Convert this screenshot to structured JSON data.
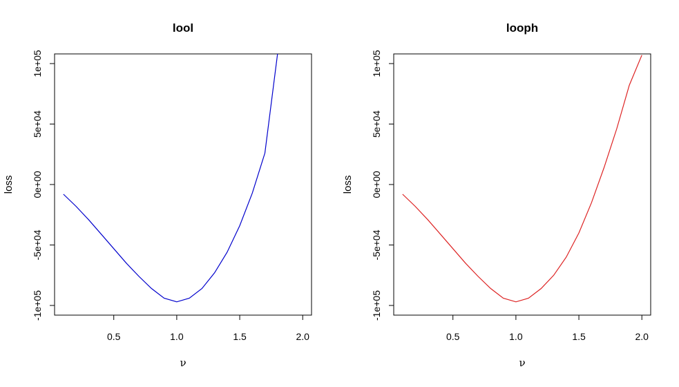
{
  "chart_data": [
    {
      "type": "line",
      "title": "lool",
      "xlabel": "ν",
      "ylabel": "loss",
      "xlim": [
        0.03,
        2.07
      ],
      "ylim": [
        -108000,
        108000
      ],
      "xticks": [
        0.5,
        1.0,
        1.5,
        2.0
      ],
      "xtick_labels": [
        "0.5",
        "1.0",
        "1.5",
        "2.0"
      ],
      "yticks": [
        -100000,
        -50000,
        0,
        50000,
        100000
      ],
      "ytick_labels": [
        "-1e+05",
        "-5e+04",
        "0e+00",
        "5e+04",
        "1e+05"
      ],
      "grid": false,
      "color": "#0000cc",
      "series": [
        {
          "x": [
            0.1,
            0.2,
            0.3,
            0.4,
            0.5,
            0.6,
            0.7,
            0.8,
            0.9,
            1.0,
            1.1,
            1.2,
            1.3,
            1.4,
            1.5,
            1.6,
            1.7,
            1.8
          ],
          "values": [
            -8000,
            -18000,
            -29000,
            -41000,
            -53000,
            -65000,
            -76000,
            -86000,
            -94000,
            -97000,
            -94000,
            -86000,
            -73000,
            -56000,
            -34000,
            -7000,
            26000,
            108000
          ]
        }
      ]
    },
    {
      "type": "line",
      "title": "looph",
      "xlabel": "ν",
      "ylabel": "loss",
      "xlim": [
        0.03,
        2.07
      ],
      "ylim": [
        -108000,
        108000
      ],
      "xticks": [
        0.5,
        1.0,
        1.5,
        2.0
      ],
      "xtick_labels": [
        "0.5",
        "1.0",
        "1.5",
        "2.0"
      ],
      "yticks": [
        -100000,
        -50000,
        0,
        50000,
        100000
      ],
      "ytick_labels": [
        "-1e+05",
        "-5e+04",
        "0e+00",
        "5e+04",
        "1e+05"
      ],
      "grid": false,
      "color": "#dd2222",
      "series": [
        {
          "x": [
            0.1,
            0.2,
            0.3,
            0.4,
            0.5,
            0.6,
            0.7,
            0.8,
            0.9,
            1.0,
            1.1,
            1.2,
            1.3,
            1.4,
            1.5,
            1.6,
            1.7,
            1.8,
            1.9,
            2.0
          ],
          "values": [
            -8000,
            -18000,
            -29000,
            -41000,
            -53000,
            -65000,
            -76000,
            -86000,
            -94000,
            -97000,
            -94000,
            -86000,
            -75000,
            -60000,
            -40000,
            -15000,
            14000,
            46000,
            82000,
            107000
          ]
        }
      ]
    }
  ]
}
